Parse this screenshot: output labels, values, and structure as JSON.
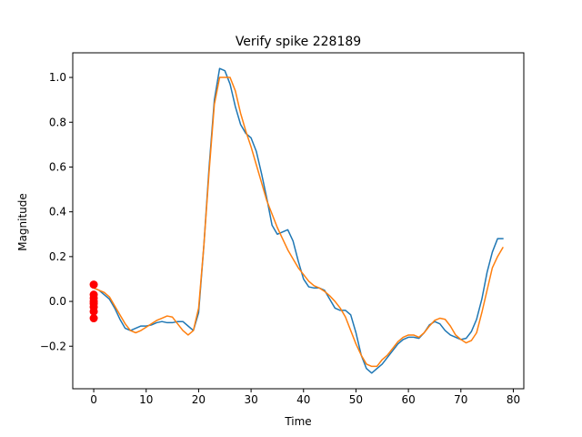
{
  "chart_data": {
    "type": "line",
    "title": "Verify spike 228189",
    "xlabel": "Time",
    "ylabel": "Magnitude",
    "xlim": [
      -4,
      82
    ],
    "ylim": [
      -0.39,
      1.11
    ],
    "xticks": [
      0,
      10,
      20,
      30,
      40,
      50,
      60,
      70,
      80
    ],
    "yticks": [
      -0.2,
      0.0,
      0.2,
      0.4,
      0.6,
      0.8,
      1.0
    ],
    "ytick_labels": [
      "−0.2",
      "0.0",
      "0.2",
      "0.4",
      "0.6",
      "0.8",
      "1.0"
    ],
    "grid": false,
    "colors": {
      "series1": "#1f77b4",
      "series2": "#ff7f0e",
      "markers": "#ff0000"
    },
    "series": [
      {
        "x": [
          0,
          1,
          2,
          3,
          4,
          5,
          6,
          7,
          8,
          9,
          10,
          11,
          12,
          13,
          14,
          15,
          16,
          17,
          18,
          19,
          20,
          21,
          22,
          23,
          24,
          25,
          26,
          27,
          28,
          29,
          30,
          31,
          32,
          33,
          34,
          35,
          36,
          37,
          38,
          39,
          40,
          41,
          42,
          43,
          44,
          45,
          46,
          47,
          48,
          49,
          50,
          51,
          52,
          53,
          54,
          55,
          56,
          57,
          58,
          59,
          60,
          61,
          62,
          63,
          64,
          65,
          66,
          67,
          68,
          69,
          70,
          71,
          72,
          73,
          74,
          75,
          76,
          77,
          78
        ],
        "y": [
          0.06,
          0.05,
          0.03,
          0.01,
          -0.03,
          -0.08,
          -0.12,
          -0.13,
          -0.12,
          -0.11,
          -0.11,
          -0.105,
          -0.095,
          -0.09,
          -0.095,
          -0.095,
          -0.09,
          -0.09,
          -0.11,
          -0.13,
          -0.05,
          0.25,
          0.6,
          0.9,
          1.04,
          1.03,
          0.97,
          0.87,
          0.79,
          0.75,
          0.73,
          0.67,
          0.57,
          0.46,
          0.34,
          0.3,
          0.31,
          0.32,
          0.27,
          0.18,
          0.1,
          0.065,
          0.06,
          0.06,
          0.05,
          0.01,
          -0.03,
          -0.04,
          -0.04,
          -0.06,
          -0.14,
          -0.24,
          -0.3,
          -0.32,
          -0.3,
          -0.28,
          -0.25,
          -0.22,
          -0.19,
          -0.17,
          -0.16,
          -0.16,
          -0.165,
          -0.14,
          -0.105,
          -0.09,
          -0.1,
          -0.13,
          -0.15,
          -0.16,
          -0.17,
          -0.165,
          -0.135,
          -0.08,
          0.01,
          0.13,
          0.22,
          0.28,
          0.28
        ]
      },
      {
        "x": [
          0,
          1,
          2,
          3,
          4,
          5,
          6,
          7,
          8,
          9,
          10,
          11,
          12,
          13,
          14,
          15,
          16,
          17,
          18,
          19,
          20,
          21,
          22,
          23,
          24,
          25,
          26,
          27,
          28,
          29,
          30,
          31,
          32,
          33,
          34,
          35,
          36,
          37,
          38,
          39,
          40,
          41,
          42,
          43,
          44,
          45,
          46,
          47,
          48,
          49,
          50,
          51,
          52,
          53,
          54,
          55,
          56,
          57,
          58,
          59,
          60,
          61,
          62,
          63,
          64,
          65,
          66,
          67,
          68,
          69,
          70,
          71,
          72,
          73,
          74,
          75,
          76,
          77,
          78
        ],
        "y": [
          0.06,
          0.05,
          0.04,
          0.02,
          -0.02,
          -0.06,
          -0.1,
          -0.13,
          -0.14,
          -0.13,
          -0.115,
          -0.1,
          -0.085,
          -0.075,
          -0.065,
          -0.07,
          -0.1,
          -0.13,
          -0.15,
          -0.13,
          -0.03,
          0.25,
          0.58,
          0.88,
          1.0,
          1.0,
          1.0,
          0.94,
          0.84,
          0.76,
          0.69,
          0.61,
          0.53,
          0.45,
          0.39,
          0.33,
          0.28,
          0.23,
          0.19,
          0.15,
          0.12,
          0.09,
          0.07,
          0.06,
          0.045,
          0.025,
          0.0,
          -0.03,
          -0.07,
          -0.13,
          -0.19,
          -0.24,
          -0.28,
          -0.29,
          -0.29,
          -0.26,
          -0.24,
          -0.21,
          -0.18,
          -0.16,
          -0.15,
          -0.15,
          -0.16,
          -0.14,
          -0.11,
          -0.085,
          -0.075,
          -0.08,
          -0.11,
          -0.15,
          -0.17,
          -0.185,
          -0.175,
          -0.14,
          -0.05,
          0.05,
          0.15,
          0.2,
          0.24
        ]
      }
    ],
    "markers": {
      "x": [
        0,
        0,
        0,
        0,
        0,
        0,
        0,
        0
      ],
      "y": [
        0.075,
        0.03,
        0.015,
        0.0,
        -0.01,
        -0.025,
        -0.045,
        -0.075
      ]
    }
  }
}
